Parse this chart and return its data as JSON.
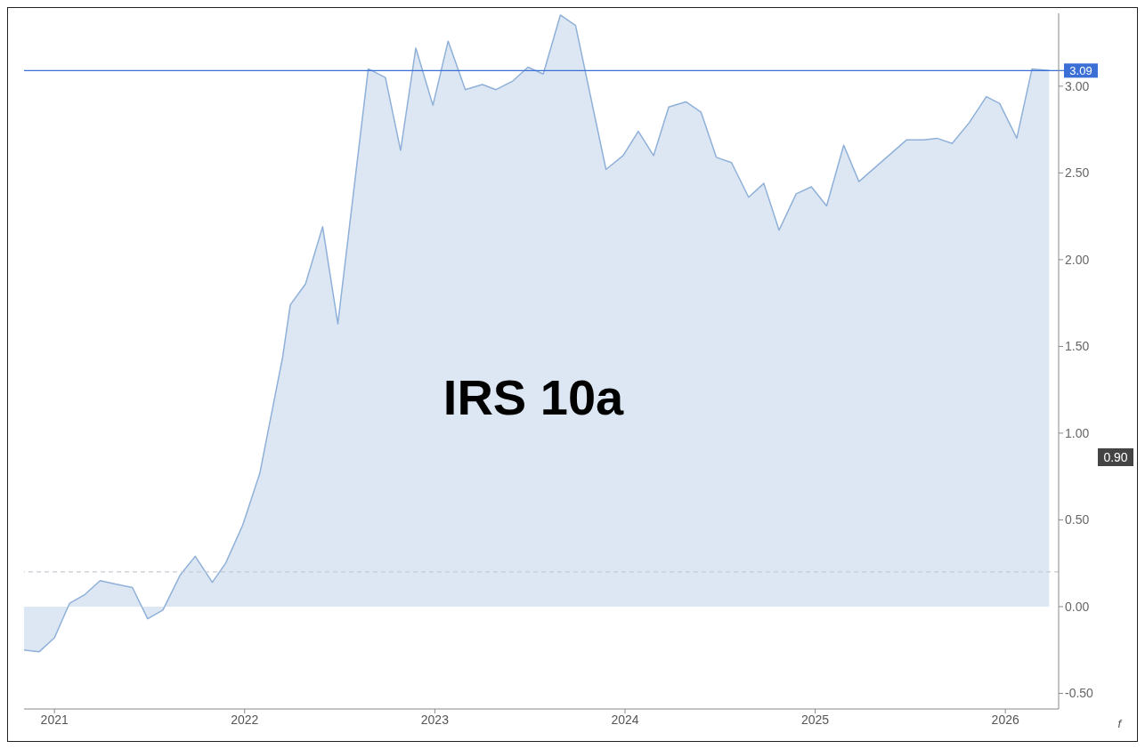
{
  "chart_data": {
    "type": "area",
    "title": "IRS 10a",
    "x": [
      2020.84,
      2020.92,
      2021.0,
      2021.08,
      2021.16,
      2021.24,
      2021.32,
      2021.41,
      2021.49,
      2021.57,
      2021.66,
      2021.74,
      2021.83,
      2021.9,
      2021.99,
      2022.08,
      2022.2,
      2022.24,
      2022.32,
      2022.41,
      2022.49,
      2022.65,
      2022.74,
      2022.82,
      2022.9,
      2022.99,
      2023.07,
      2023.16,
      2023.25,
      2023.32,
      2023.41,
      2023.49,
      2023.57,
      2023.66,
      2023.74,
      2023.9,
      2023.99,
      2024.07,
      2024.15,
      2024.23,
      2024.32,
      2024.4,
      2024.48,
      2024.56,
      2024.65,
      2024.73,
      2024.81,
      2024.9,
      2024.98,
      2025.06,
      2025.15,
      2025.23,
      2025.48,
      2025.57,
      2025.64,
      2025.72,
      2025.81,
      2025.9,
      2025.97,
      2026.06,
      2026.14,
      2026.23
    ],
    "series": [
      {
        "color": "#8fb0d8",
        "values": [
          -0.25,
          -0.26,
          -0.18,
          0.02,
          0.07,
          0.15,
          0.13,
          0.11,
          -0.07,
          -0.02,
          0.18,
          0.29,
          0.14,
          0.25,
          0.47,
          0.77,
          1.44,
          1.74,
          1.86,
          2.19,
          1.63,
          3.1,
          3.05,
          2.63,
          3.22,
          2.89,
          3.26,
          2.98,
          3.01,
          2.98,
          3.03,
          3.11,
          3.07,
          3.41,
          3.35,
          2.52,
          2.6,
          2.74,
          2.6,
          2.88,
          2.91,
          2.85,
          2.59,
          2.56,
          2.36,
          2.44,
          2.17,
          2.38,
          2.42,
          2.31,
          2.66,
          2.45,
          2.69,
          2.69,
          2.7,
          2.67,
          2.79,
          2.94,
          2.9,
          2.7,
          3.1,
          3.09
        ]
      }
    ],
    "xlim": [
      2020.84,
      2026.28
    ],
    "xticks": [
      2021,
      2022,
      2023,
      2024,
      2025,
      2026
    ],
    "ylim": [
      -0.59,
      3.42
    ],
    "yticks": [
      {
        "value": -0.5,
        "label": "-0.50"
      },
      {
        "value": 0,
        "label": "0.00"
      },
      {
        "value": 0.5,
        "label": "0.50"
      },
      {
        "value": 1,
        "label": "1.00"
      },
      {
        "value": 1.5,
        "label": "1.50"
      },
      {
        "value": 2,
        "label": "2.00"
      },
      {
        "value": 2.5,
        "label": "2.50"
      },
      {
        "value": 3,
        "label": "3.00"
      }
    ],
    "ref_lines": [
      {
        "axis": "y",
        "value": 3.09,
        "label": "3.09",
        "color": "#3b6fd6"
      },
      {
        "axis": "y",
        "value": 0.2,
        "line_style": "dashed",
        "color": "#c4cbd4"
      }
    ],
    "annotations": [
      "0.90",
      "f"
    ],
    "marker": "none",
    "line_style": "solid"
  }
}
